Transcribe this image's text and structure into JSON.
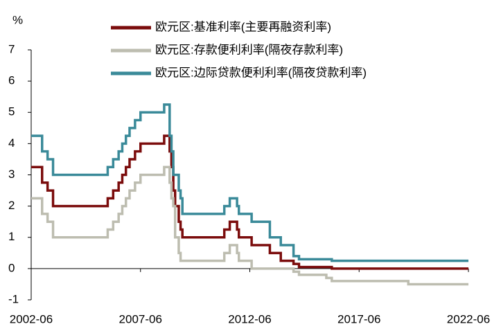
{
  "chart_data": {
    "type": "step-line",
    "y_unit": "%",
    "x": [
      "2002-06",
      "2002-12",
      "2003-03",
      "2003-06",
      "2005-12",
      "2006-03",
      "2006-06",
      "2006-08",
      "2006-10",
      "2006-12",
      "2007-03",
      "2007-06",
      "2008-07",
      "2008-10",
      "2008-11",
      "2008-12",
      "2009-01",
      "2009-03",
      "2009-04",
      "2009-05",
      "2011-04",
      "2011-07",
      "2011-11",
      "2011-12",
      "2012-07",
      "2013-05",
      "2013-11",
      "2014-06",
      "2014-09",
      "2015-12",
      "2016-03",
      "2019-09",
      "2022-06"
    ],
    "series": [
      {
        "name": "欧元区:基准利率(主要再融资利率)",
        "color": "#7b0c0c",
        "values": [
          3.25,
          2.75,
          2.5,
          2.0,
          2.25,
          2.5,
          2.75,
          3.0,
          3.25,
          3.5,
          3.75,
          4.0,
          4.25,
          3.75,
          3.25,
          2.5,
          2.0,
          1.5,
          1.25,
          1.0,
          1.25,
          1.5,
          1.25,
          1.0,
          0.75,
          0.5,
          0.25,
          0.15,
          0.05,
          0.05,
          0,
          0,
          0
        ]
      },
      {
        "name": "欧元区:存款便利利率(隔夜存款利率)",
        "color": "#bdbdb0",
        "values": [
          2.25,
          1.75,
          1.5,
          1.0,
          1.25,
          1.5,
          1.75,
          2.0,
          2.25,
          2.5,
          2.75,
          3.0,
          3.25,
          2.75,
          2.25,
          2.0,
          1.0,
          0.5,
          0.25,
          0.25,
          0.5,
          0.75,
          0.5,
          0.25,
          0,
          0,
          0,
          -0.1,
          -0.2,
          -0.3,
          -0.4,
          -0.5,
          -0.5
        ]
      },
      {
        "name": "欧元区:边际贷款便利利率(隔夜贷款利率)",
        "color": "#3a8a99",
        "values": [
          4.25,
          3.75,
          3.5,
          3.0,
          3.25,
          3.5,
          3.75,
          4.0,
          4.25,
          4.5,
          4.75,
          5.0,
          5.25,
          4.25,
          3.75,
          3.0,
          3.0,
          2.5,
          2.25,
          1.75,
          2.0,
          2.25,
          2.0,
          1.75,
          1.5,
          1.0,
          0.75,
          0.4,
          0.3,
          0.3,
          0.25,
          0.25,
          0.25
        ]
      }
    ],
    "xlim": [
      "2002-06",
      "2022-06"
    ],
    "xticks": [
      "2002-06",
      "2007-06",
      "2012-06",
      "2017-06",
      "2022-06"
    ],
    "ylim": [
      -1,
      7
    ],
    "yticks": [
      -1,
      0,
      1,
      2,
      3,
      4,
      5,
      6,
      7
    ],
    "grid": false
  }
}
